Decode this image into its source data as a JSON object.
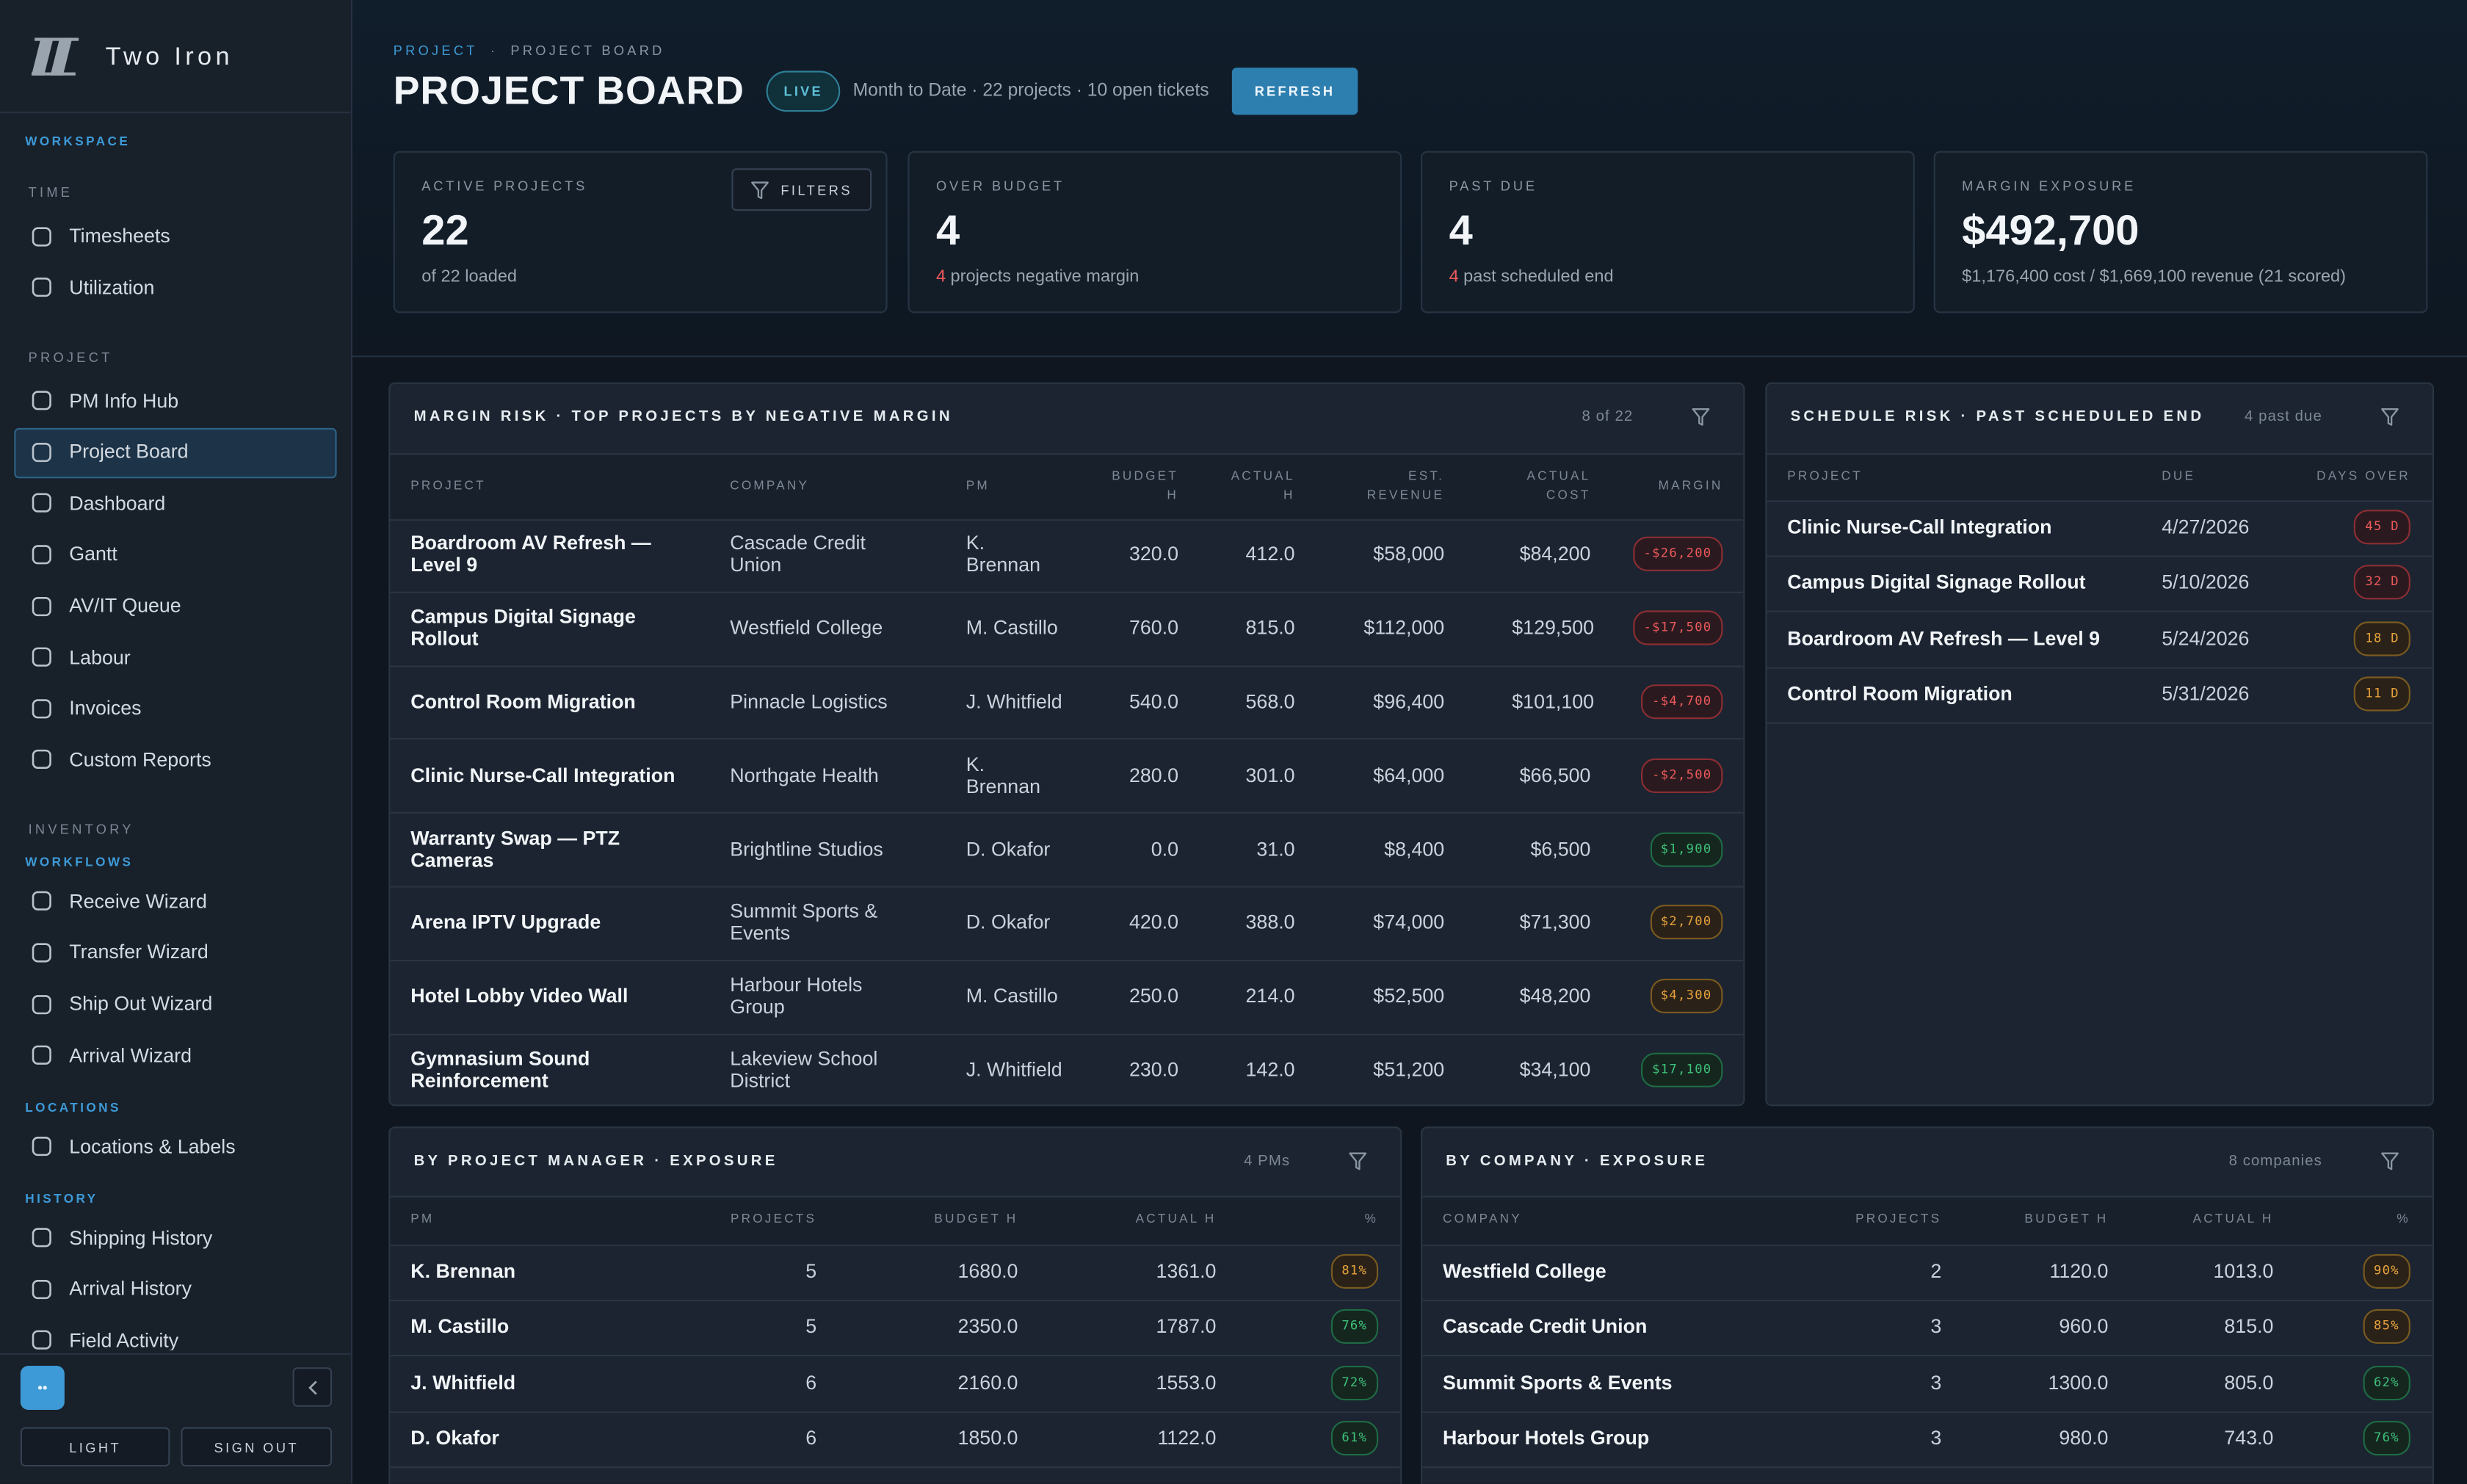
{
  "sidebar": {
    "brand": "Two Iron",
    "nav": [
      {
        "kind": "accent",
        "label": "WORKSPACE"
      },
      {
        "kind": "heading",
        "label": "TIME"
      },
      {
        "kind": "item",
        "label": "Timesheets"
      },
      {
        "kind": "item",
        "label": "Utilization"
      },
      {
        "kind": "heading",
        "label": "PROJECT"
      },
      {
        "kind": "item",
        "label": "PM Info Hub"
      },
      {
        "kind": "item",
        "label": "Project Board",
        "active": true
      },
      {
        "kind": "item",
        "label": "Dashboard"
      },
      {
        "kind": "item",
        "label": "Gantt"
      },
      {
        "kind": "item",
        "label": "AV/IT Queue"
      },
      {
        "kind": "item",
        "label": "Labour"
      },
      {
        "kind": "item",
        "label": "Invoices"
      },
      {
        "kind": "item",
        "label": "Custom Reports"
      },
      {
        "kind": "heading",
        "label": "INVENTORY"
      },
      {
        "kind": "subheading",
        "label": "WORKFLOWS"
      },
      {
        "kind": "item",
        "label": "Receive Wizard"
      },
      {
        "kind": "item",
        "label": "Transfer Wizard"
      },
      {
        "kind": "item",
        "label": "Ship Out Wizard"
      },
      {
        "kind": "item",
        "label": "Arrival Wizard"
      },
      {
        "kind": "subheading",
        "label": "LOCATIONS"
      },
      {
        "kind": "item",
        "label": "Locations & Labels"
      },
      {
        "kind": "subheading",
        "label": "HISTORY"
      },
      {
        "kind": "item",
        "label": "Shipping History"
      },
      {
        "kind": "item",
        "label": "Arrival History"
      },
      {
        "kind": "item",
        "label": "Field Activity"
      }
    ],
    "avatar": "••",
    "buttons": [
      "LIGHT",
      "SIGN OUT"
    ]
  },
  "header": {
    "breadcrumb": [
      "PROJECT",
      "·",
      "PROJECT BOARD"
    ],
    "title": "PROJECT BOARD",
    "status": "LIVE",
    "summary": "Month to Date · 22 projects · 10 open tickets",
    "refresh": "REFRESH"
  },
  "kpis": [
    {
      "label": "ACTIVE PROJECTS",
      "value": "22",
      "note": "of 22 loaded",
      "action": "FILTERS"
    },
    {
      "label": "OVER BUDGET",
      "value": "4",
      "note_count": "4",
      "note": "projects negative margin"
    },
    {
      "label": "PAST DUE",
      "value": "4",
      "note_count": "4",
      "note": "past scheduled end"
    },
    {
      "label": "MARGIN EXPOSURE",
      "value": "$492,700",
      "note": "$1,176,400 cost / $1,669,100 revenue (21 scored)"
    }
  ],
  "margin_risk": {
    "title": "MARGIN RISK · TOP PROJECTS BY NEGATIVE MARGIN",
    "count": "8 of 22",
    "columns": [
      "PROJECT",
      "COMPANY",
      "PM",
      "BUDGET H",
      "ACTUAL H",
      "EST. REVENUE",
      "ACTUAL COST",
      "MARGIN"
    ],
    "rows": [
      [
        "Boardroom AV Refresh — Level 9",
        "Cascade Credit Union",
        "K. Brennan",
        "320.0",
        "412.0",
        "$58,000",
        "$84,200",
        "-$26,200"
      ],
      [
        "Campus Digital Signage Rollout",
        "Westfield College",
        "M. Castillo",
        "760.0",
        "815.0",
        "$112,000",
        "$129,500",
        "-$17,500"
      ],
      [
        "Control Room Migration",
        "Pinnacle Logistics",
        "J. Whitfield",
        "540.0",
        "568.0",
        "$96,400",
        "$101,100",
        "-$4,700"
      ],
      [
        "Clinic Nurse-Call Integration",
        "Northgate Health",
        "K. Brennan",
        "280.0",
        "301.0",
        "$64,000",
        "$66,500",
        "-$2,500"
      ],
      [
        "Warranty Swap — PTZ Cameras",
        "Brightline Studios",
        "D. Okafor",
        "0.0",
        "31.0",
        "$8,400",
        "$6,500",
        "$1,900"
      ],
      [
        "Arena IPTV Upgrade",
        "Summit Sports & Events",
        "D. Okafor",
        "420.0",
        "388.0",
        "$74,000",
        "$71,300",
        "$2,700"
      ],
      [
        "Hotel Lobby Video Wall",
        "Harbour Hotels Group",
        "M. Castillo",
        "250.0",
        "214.0",
        "$52,500",
        "$48,200",
        "$4,300"
      ],
      [
        "Gymnasium Sound Reinforcement",
        "Lakeview School District",
        "J. Whitfield",
        "230.0",
        "142.0",
        "$51,200",
        "$34,100",
        "$17,100"
      ]
    ],
    "tones": [
      "red",
      "red",
      "red",
      "red",
      "green",
      "amber",
      "amber",
      "green"
    ]
  },
  "schedule_risk": {
    "title": "SCHEDULE RISK · PAST SCHEDULED END",
    "count": "4 past due",
    "columns": [
      "PROJECT",
      "DUE",
      "DAYS OVER"
    ],
    "rows": [
      [
        "Clinic Nurse-Call Integration",
        "4/27/2026",
        "45 D"
      ],
      [
        "Campus Digital Signage Rollout",
        "5/10/2026",
        "32 D"
      ],
      [
        "Boardroom AV Refresh — Level 9",
        "5/24/2026",
        "18 D"
      ],
      [
        "Control Room Migration",
        "5/31/2026",
        "11 D"
      ]
    ],
    "tones": [
      "red",
      "red",
      "amber",
      "amber"
    ]
  },
  "pm_exposure": {
    "title": "BY PROJECT MANAGER · EXPOSURE",
    "count": "4 PMs",
    "columns": [
      "PM",
      "PROJECTS",
      "BUDGET H",
      "ACTUAL H",
      "%"
    ],
    "rows": [
      [
        "K. Brennan",
        "5",
        "1680.0",
        "1361.0",
        "81%"
      ],
      [
        "M. Castillo",
        "5",
        "2350.0",
        "1787.0",
        "76%"
      ],
      [
        "J. Whitfield",
        "6",
        "2160.0",
        "1553.0",
        "72%"
      ],
      [
        "D. Okafor",
        "6",
        "1850.0",
        "1122.0",
        "61%"
      ]
    ],
    "tones": [
      "amber",
      "green",
      "green",
      "green"
    ]
  },
  "company_exposure": {
    "title": "BY COMPANY · EXPOSURE",
    "count": "8 companies",
    "columns": [
      "COMPANY",
      "PROJECTS",
      "BUDGET H",
      "ACTUAL H",
      "%"
    ],
    "rows": [
      [
        "Westfield College",
        "2",
        "1120.0",
        "1013.0",
        "90%"
      ],
      [
        "Cascade Credit Union",
        "3",
        "960.0",
        "815.0",
        "85%"
      ],
      [
        "Summit Sports & Events",
        "3",
        "1300.0",
        "805.0",
        "62%"
      ],
      [
        "Harbour Hotels Group",
        "3",
        "980.0",
        "743.0",
        "76%"
      ]
    ],
    "tones": [
      "amber",
      "amber",
      "green",
      "green"
    ]
  }
}
